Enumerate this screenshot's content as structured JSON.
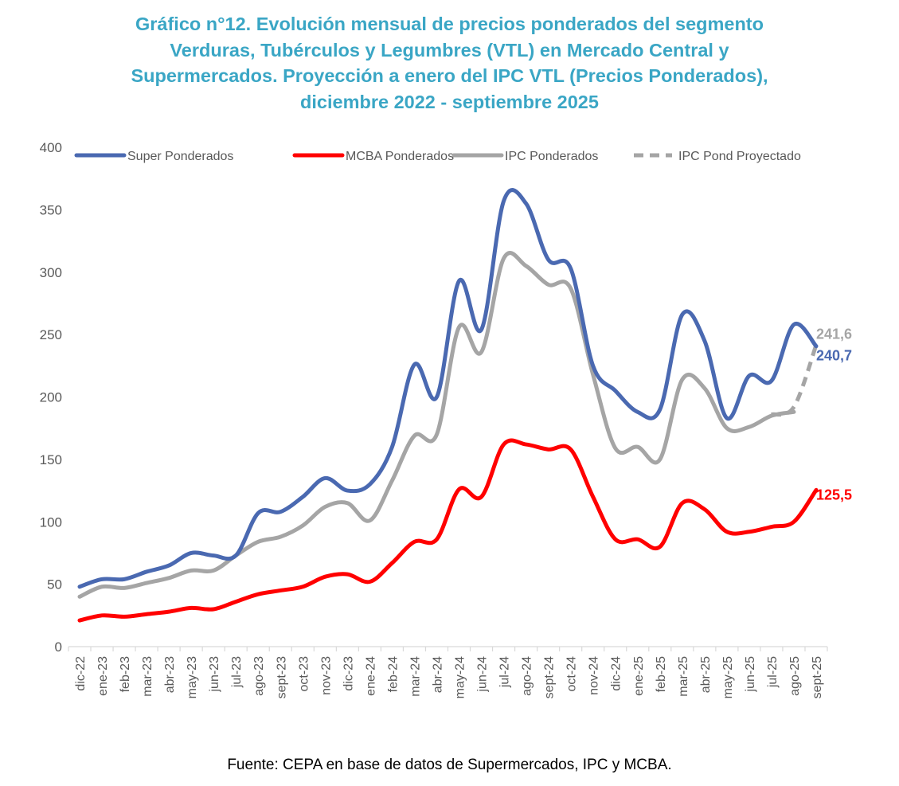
{
  "chart_data": {
    "type": "line",
    "title": "Gráfico n°12. Evolución mensual de precios ponderados del segmento\nVerduras, Tubérculos y Legumbres (VTL) en Mercado Central y\nSupermercados. Proyección a enero del IPC VTL (Precios Ponderados),\ndiciembre 2022 - septiembre 2025",
    "xlabel": "",
    "ylabel": "",
    "ylim": [
      0,
      400
    ],
    "yticks": [
      0,
      50,
      100,
      150,
      200,
      250,
      300,
      350,
      400
    ],
    "grid": false,
    "legend_position": "top",
    "categories": [
      "dic-22",
      "ene-23",
      "feb-23",
      "mar-23",
      "abr-23",
      "may-23",
      "jun-23",
      "jul-23",
      "ago-23",
      "sept-23",
      "oct-23",
      "nov-23",
      "dic-23",
      "ene-24",
      "feb-24",
      "mar-24",
      "abr-24",
      "may-24",
      "jun-24",
      "jul-24",
      "ago-24",
      "sept-24",
      "oct-24",
      "nov-24",
      "dic-24",
      "ene-25",
      "feb-25",
      "mar-25",
      "abr-25",
      "may-25",
      "jun-25",
      "jul-25",
      "ago-25",
      "sept-25"
    ],
    "series": [
      {
        "name": "Super Ponderados",
        "color": "#4A69B1",
        "dash": false,
        "values": [
          48,
          54,
          54,
          60,
          65,
          75,
          73,
          73,
          107,
          108,
          120,
          135,
          125,
          130,
          160,
          226,
          200,
          293,
          254,
          357,
          355,
          310,
          303,
          225,
          205,
          188,
          190,
          266,
          245,
          183,
          217,
          213,
          258,
          240.7
        ],
        "end_label": "240,7"
      },
      {
        "name": "MCBA Ponderados",
        "color": "#FF0000",
        "dash": false,
        "values": [
          21,
          25,
          24,
          26,
          28,
          31,
          30,
          36,
          42,
          45,
          48,
          56,
          58,
          52,
          67,
          84,
          86,
          126,
          120,
          162,
          162,
          158,
          158,
          120,
          86,
          86,
          80,
          115,
          110,
          92,
          92,
          96,
          100,
          125.5
        ],
        "end_label": "125,5"
      },
      {
        "name": "IPC Ponderados",
        "color": "#A5A5A5",
        "dash": false,
        "values": [
          40,
          48,
          47,
          51,
          55,
          61,
          61,
          73,
          84,
          88,
          97,
          112,
          115,
          101,
          133,
          169,
          170,
          256,
          236,
          311,
          305,
          290,
          287,
          218,
          159,
          160,
          150,
          214,
          207,
          175,
          176,
          185,
          188,
          null
        ],
        "end_label": ""
      },
      {
        "name": "IPC Pond Proyectado",
        "color": "#A5A5A5",
        "dash": true,
        "values": [
          null,
          null,
          null,
          null,
          null,
          null,
          null,
          null,
          null,
          null,
          null,
          null,
          null,
          null,
          null,
          null,
          null,
          null,
          null,
          null,
          null,
          null,
          null,
          null,
          null,
          null,
          null,
          null,
          null,
          null,
          null,
          186,
          192,
          241.6
        ],
        "end_label": "241,6"
      }
    ],
    "source": "Fuente: CEPA en base de datos de Supermercados, IPC y MCBA."
  }
}
